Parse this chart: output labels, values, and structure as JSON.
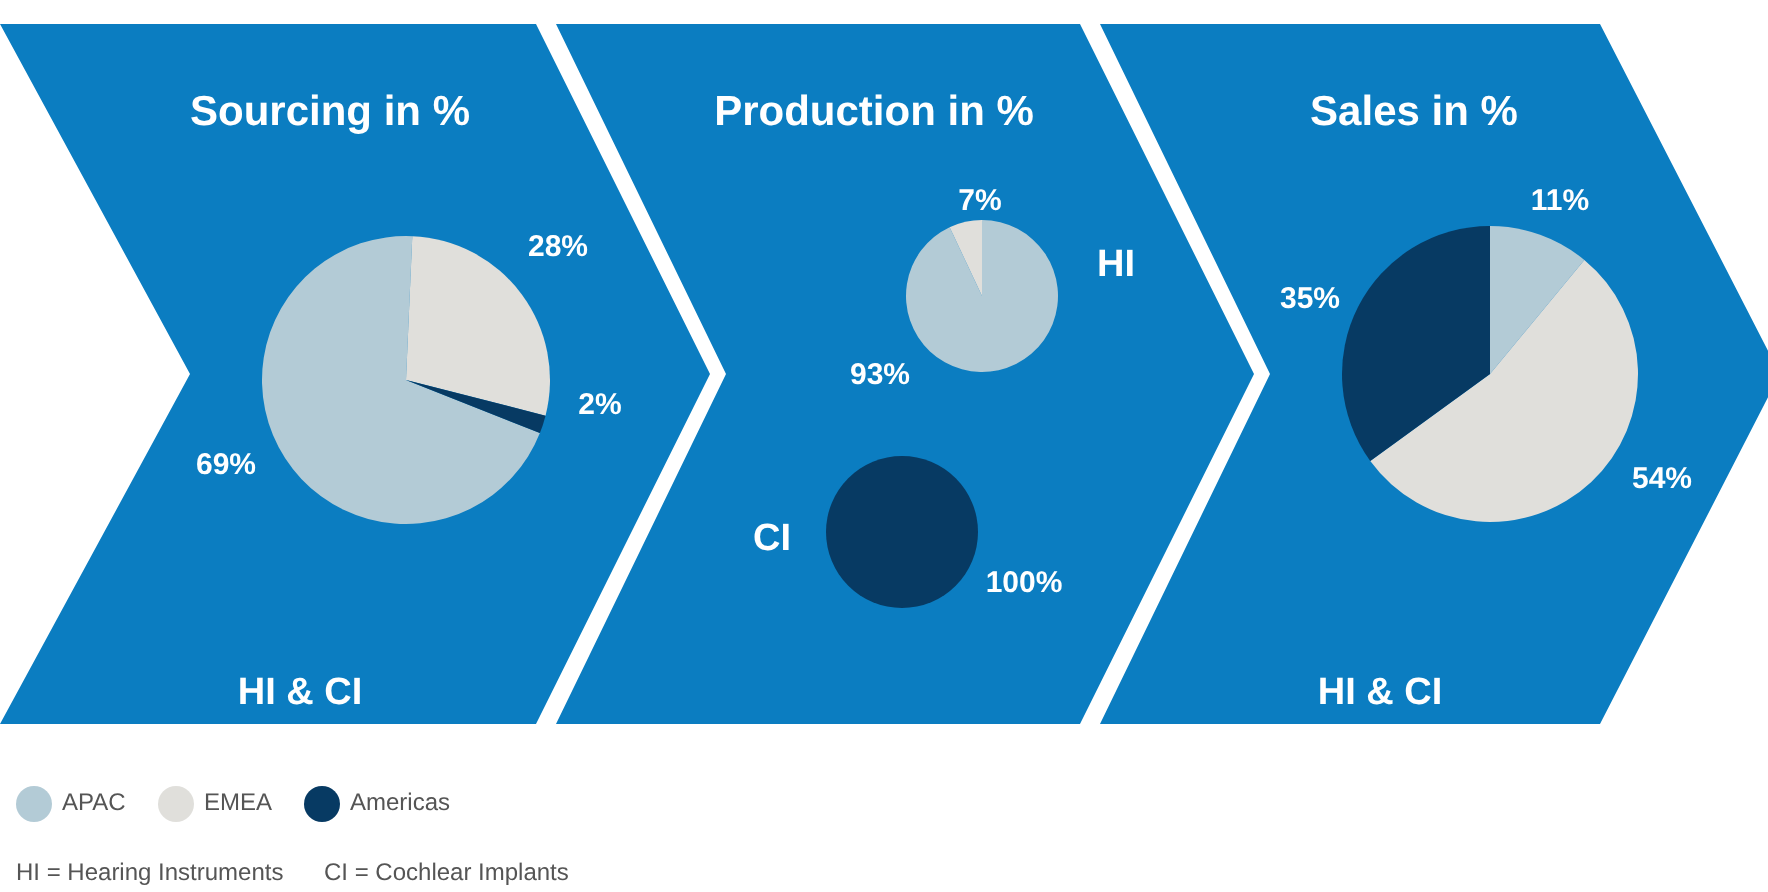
{
  "chart_data": [
    {
      "type": "pie",
      "title": "Sourcing in %",
      "subtitle": "HI & CI",
      "categories": [
        "APAC",
        "EMEA",
        "Americas"
      ],
      "values": [
        69,
        28,
        2
      ],
      "colors": [
        "#b3cbd6",
        "#e0dfdb",
        "#073a63"
      ],
      "value_labels": [
        "69%",
        "28%",
        "2%"
      ],
      "legend": "bottom left",
      "annotations": [
        "HI = Hearing Instruments",
        "CI = Cochlear Implants"
      ]
    },
    {
      "type": "pie",
      "title": "Production in %",
      "subtitle": "HI",
      "categories": [
        null,
        null
      ],
      "values": [
        93,
        7
      ],
      "colors": [
        "#b3cbd6",
        "#e0dfdb"
      ],
      "value_labels": [
        "93%",
        "7%"
      ]
    },
    {
      "type": "pie",
      "subtitle": "CI",
      "categories": [
        null
      ],
      "values": [
        100
      ],
      "colors": [
        "#073a63"
      ],
      "value_labels": [
        "100%"
      ]
    },
    {
      "type": "pie",
      "title": "Sales in %",
      "subtitle": "HI & CI",
      "categories": [
        null,
        null,
        null
      ],
      "values": [
        11,
        54,
        35
      ],
      "colors": [
        "#b3cbd6",
        "#e0dfdb",
        "#073a63"
      ],
      "value_labels": [
        "11%",
        "54%",
        "35%"
      ]
    }
  ]
}
